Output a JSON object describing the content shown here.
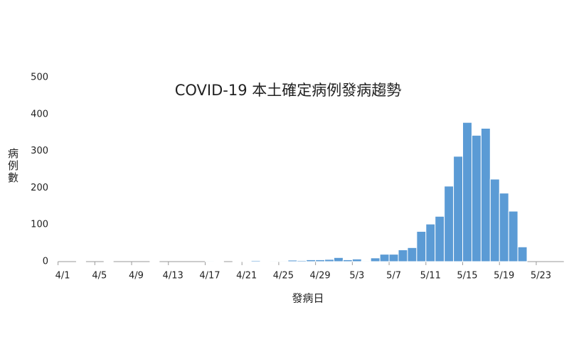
{
  "chart_data": {
    "type": "bar",
    "title": "COVID-19 本土確定病例發病趨勢",
    "x_label": "發病日",
    "y_label": "病例數",
    "color": "#5b9bd5",
    "categories": [
      "4/1",
      null,
      null,
      null,
      "4/5",
      null,
      null,
      null,
      "4/9",
      null,
      null,
      null,
      "4/13",
      null,
      null,
      null,
      "4/17",
      null,
      null,
      null,
      "4/21",
      null,
      null,
      null,
      "4/25",
      null,
      null,
      null,
      "4/29",
      null,
      null,
      null,
      "5/3",
      null,
      null,
      null,
      "5/7",
      null,
      null,
      null,
      "5/11",
      null,
      null,
      null,
      "5/15",
      null,
      null,
      null,
      "5/19",
      null,
      null,
      null,
      "5/23",
      null,
      null
    ],
    "values": [
      0,
      0,
      1,
      0,
      0,
      1,
      0,
      0,
      0,
      0,
      1,
      0,
      0,
      0,
      0,
      0,
      2,
      1,
      0,
      1,
      1,
      3,
      1,
      2,
      2,
      4,
      3,
      5,
      5,
      6,
      11,
      5,
      7,
      2,
      10,
      20,
      20,
      32,
      38,
      82,
      102,
      123,
      205,
      286,
      378,
      343,
      362,
      224,
      186,
      137,
      40,
      0,
      0,
      0,
      0
    ],
    "ylim": [
      0,
      500
    ],
    "yticks": [
      0,
      100,
      200,
      300,
      400,
      500
    ]
  }
}
